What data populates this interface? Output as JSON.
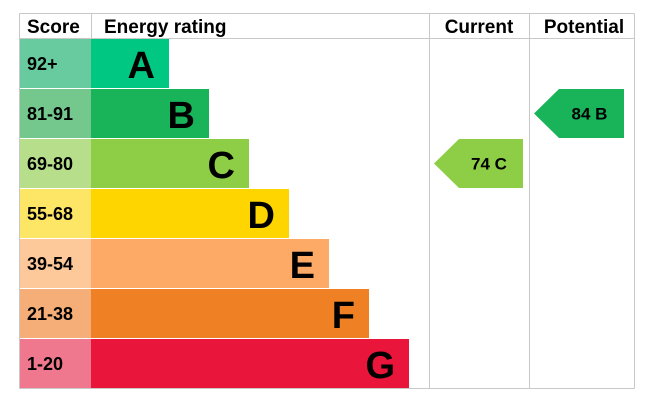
{
  "chart_data": {
    "type": "bar",
    "headers": {
      "score": "Score",
      "rating": "Energy rating",
      "current": "Current",
      "potential": "Potential"
    },
    "bands": [
      {
        "letter": "A",
        "score": "92+",
        "color": "#00c781",
        "score_bg": "#68cba0"
      },
      {
        "letter": "B",
        "score": "81-91",
        "color": "#19b459",
        "score_bg": "#74c88e"
      },
      {
        "letter": "C",
        "score": "69-80",
        "color": "#8dce46",
        "score_bg": "#b7df8b"
      },
      {
        "letter": "D",
        "score": "55-68",
        "color": "#ffd500",
        "score_bg": "#fde566"
      },
      {
        "letter": "E",
        "score": "39-54",
        "color": "#fcaa65",
        "score_bg": "#fdc99a"
      },
      {
        "letter": "F",
        "score": "21-38",
        "color": "#ef8023",
        "score_bg": "#f5ae78"
      },
      {
        "letter": "G",
        "score": "1-20",
        "color": "#e9153b",
        "score_bg": "#f0788e"
      }
    ],
    "current": {
      "value": 74,
      "band": "C",
      "label": "74  C",
      "color": "#8dce46"
    },
    "potential": {
      "value": 84,
      "band": "B",
      "label": "84  B",
      "color": "#19b459"
    }
  }
}
